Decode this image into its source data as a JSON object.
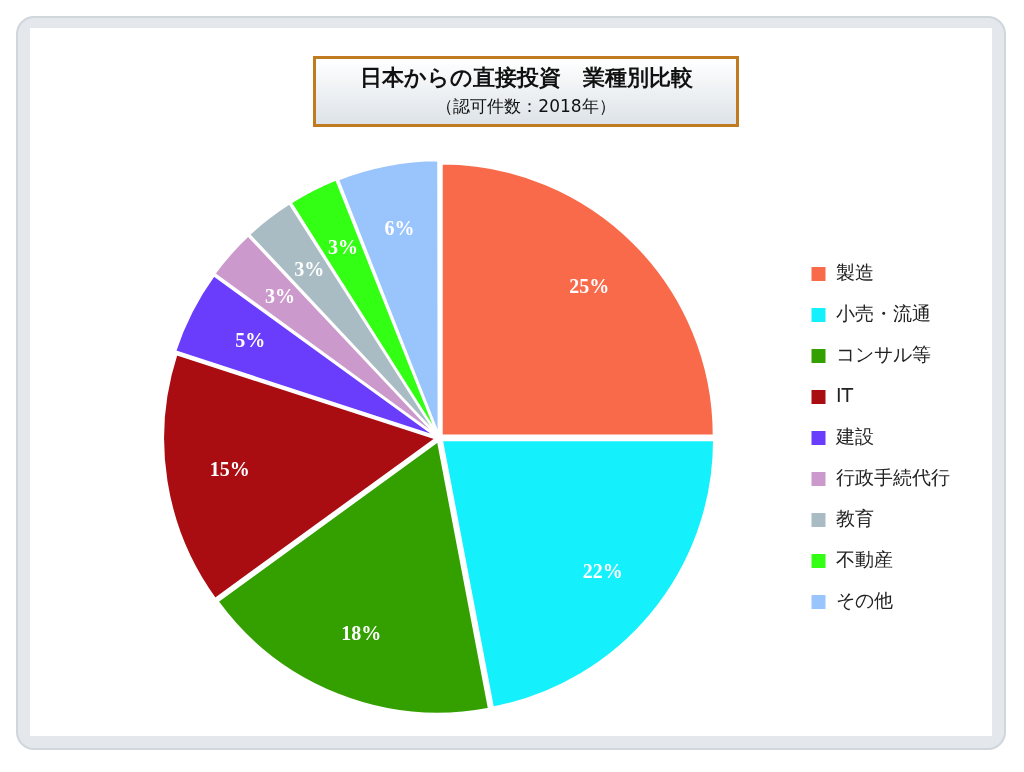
{
  "chart_data": {
    "type": "pie",
    "title": "日本からの直接投資　業種別比較",
    "subtitle": "（認可件数：2018年）",
    "categories": [
      "製造",
      "小売・流通",
      "コンサル等",
      "IT",
      "建設",
      "行政手続代行",
      "教育",
      "不動産",
      "その他"
    ],
    "values": [
      25,
      22,
      18,
      15,
      5,
      3,
      3,
      3,
      6
    ],
    "colors": [
      "#f96a4a",
      "#14f0fc",
      "#33a000",
      "#a90d12",
      "#6a3cfc",
      "#cc99cc",
      "#a9bcc4",
      "#33ff14",
      "#99c4fc"
    ],
    "value_labels": [
      "25%",
      "22%",
      "18%",
      "15%",
      "5%",
      "3%",
      "3%",
      "3%",
      "6%"
    ],
    "legend": "right"
  }
}
